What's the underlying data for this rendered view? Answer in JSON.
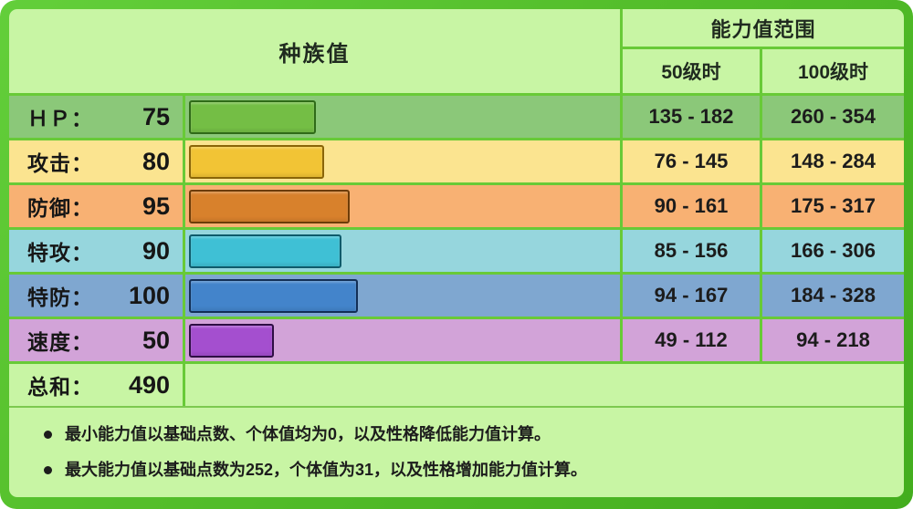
{
  "header": {
    "base_stats": "种族值",
    "range": "能力值范围",
    "level50": "50级时",
    "level100": "100级时"
  },
  "max_stat": 255,
  "chart_data": {
    "type": "bar",
    "categories": [
      "HP",
      "攻击",
      "防御",
      "特攻",
      "特防",
      "速度"
    ],
    "values": [
      75,
      80,
      95,
      90,
      100,
      50
    ],
    "title": "种族值",
    "xlabel": "",
    "ylabel": "",
    "xlim": [
      0,
      255
    ],
    "total": 490
  },
  "rows": [
    {
      "label": "ＨＰ：",
      "value": 75,
      "range50": "135 - 182",
      "range100": "260 - 354",
      "row_bg": "#8bc879",
      "bar_fill": "#74be45",
      "bar_border": "#2f6b18"
    },
    {
      "label": "攻击：",
      "value": 80,
      "range50": "76 - 145",
      "range100": "148 - 284",
      "row_bg": "#fbe490",
      "bar_fill": "#f2c435",
      "bar_border": "#8a6508"
    },
    {
      "label": "防御：",
      "value": 95,
      "range50": "90 - 161",
      "range100": "175 - 317",
      "row_bg": "#f8b173",
      "bar_fill": "#d8812c",
      "bar_border": "#6d3c08"
    },
    {
      "label": "特攻：",
      "value": 90,
      "range50": "85 - 156",
      "range100": "166 - 306",
      "row_bg": "#96d6dd",
      "bar_fill": "#3fc0d5",
      "bar_border": "#0f5b6b"
    },
    {
      "label": "特防：",
      "value": 100,
      "range50": "94 - 167",
      "range100": "184 - 328",
      "row_bg": "#7fa7d0",
      "bar_fill": "#4384cb",
      "bar_border": "#122f56"
    },
    {
      "label": "速度：",
      "value": 50,
      "range50": "49 - 112",
      "range100": "94 - 218",
      "row_bg": "#d2a3d8",
      "bar_fill": "#a44fcf",
      "bar_border": "#2e0e44"
    }
  ],
  "total": {
    "label": "总和：",
    "value": 490
  },
  "notes": [
    "最小能力值以基础点数、个体值均为0，以及性格降低能力值计算。",
    "最大能力值以基础点数为252，个体值为31，以及性格增加能力值计算。"
  ],
  "colors": {
    "frame": "#54be2b",
    "panel": "#c8f5a4",
    "divider": "#68ca37"
  }
}
